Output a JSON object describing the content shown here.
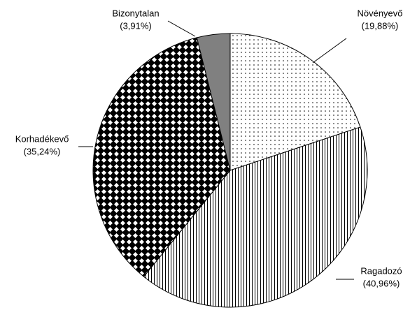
{
  "chart_data": {
    "type": "pie",
    "categories": [
      "Növényevő",
      "Ragadozó",
      "Korhadékevő",
      "Bizonytalan"
    ],
    "values": [
      19.88,
      40.96,
      35.24,
      3.91
    ],
    "value_labels": [
      "(19,88%)",
      "(40,96%)",
      "(35,24%)",
      "(3,91%)"
    ]
  }
}
